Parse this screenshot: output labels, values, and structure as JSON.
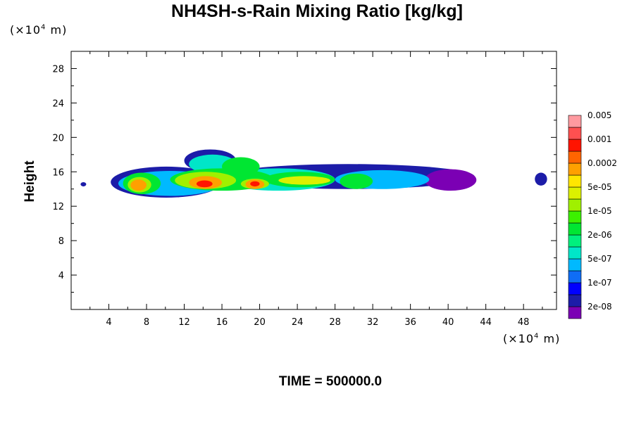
{
  "chart_data": {
    "type": "heatmap",
    "title": "NH4SH-s-Rain Mixing Ratio [kg/kg]",
    "xlabel": "",
    "ylabel": "Height",
    "footer": "TIME = 500000.0",
    "x_unit": {
      "prefix": "×10",
      "exponent": "4",
      "suffix": " m"
    },
    "y_unit": {
      "prefix": "×10",
      "exponent": "4",
      "suffix": " m"
    },
    "xlim": [
      0,
      51.5
    ],
    "ylim": [
      0,
      30
    ],
    "x_ticks": [
      4,
      8,
      12,
      16,
      20,
      24,
      28,
      32,
      36,
      40,
      44,
      48
    ],
    "y_ticks": [
      4,
      8,
      12,
      16,
      20,
      24,
      28
    ],
    "colorbar": {
      "levels": [
        {
          "color": "#7b00b4",
          "label": "2e-08"
        },
        {
          "color": "#1c1ca8",
          "label": ""
        },
        {
          "color": "#0000ff",
          "label": "1e-07"
        },
        {
          "color": "#0f6df5",
          "label": ""
        },
        {
          "color": "#00b9ff",
          "label": "5e-07"
        },
        {
          "color": "#00e6c8",
          "label": ""
        },
        {
          "color": "#00f07d",
          "label": "2e-06"
        },
        {
          "color": "#00e632",
          "label": ""
        },
        {
          "color": "#3cf000",
          "label": "1e-05"
        },
        {
          "color": "#a0f000",
          "label": ""
        },
        {
          "color": "#dcf000",
          "label": "5e-05"
        },
        {
          "color": "#ffe600",
          "label": ""
        },
        {
          "color": "#ffa000",
          "label": "0.0002"
        },
        {
          "color": "#ff6400",
          "label": ""
        },
        {
          "color": "#ff1400",
          "label": "0.001"
        },
        {
          "color": "#ff5050",
          "label": ""
        },
        {
          "color": "#ff9aa0",
          "label": "0.005"
        }
      ]
    },
    "field": {
      "description_levels": "level indices into colorbar.levels",
      "blobs": [
        {
          "x": [
            1.0,
            1.6
          ],
          "y": [
            14.3,
            14.8
          ],
          "level": 1
        },
        {
          "x": [
            4.2,
            16.0
          ],
          "y": [
            13.0,
            16.6
          ],
          "level": 1
        },
        {
          "x": [
            12.0,
            17.5
          ],
          "y": [
            16.0,
            18.6
          ],
          "level": 1
        },
        {
          "x": [
            16.0,
            42.8
          ],
          "y": [
            14.0,
            16.9
          ],
          "level": 1
        },
        {
          "x": [
            37.5,
            43.0
          ],
          "y": [
            13.8,
            16.3
          ],
          "level": 0
        },
        {
          "x": [
            49.2,
            50.5
          ],
          "y": [
            14.4,
            15.9
          ],
          "level": 1
        },
        {
          "x": [
            5.0,
            16.0
          ],
          "y": [
            13.2,
            16.1
          ],
          "level": 4
        },
        {
          "x": [
            12.5,
            17.5
          ],
          "y": [
            15.8,
            18.0
          ],
          "level": 5
        },
        {
          "x": [
            16.0,
            28.0
          ],
          "y": [
            13.8,
            16.4
          ],
          "level": 5
        },
        {
          "x": [
            28.0,
            38.0
          ],
          "y": [
            14.0,
            16.2
          ],
          "level": 4
        },
        {
          "x": [
            5.5,
            9.5
          ],
          "y": [
            13.4,
            15.9
          ],
          "level": 7
        },
        {
          "x": [
            10.5,
            21.5
          ],
          "y": [
            13.8,
            16.4
          ],
          "level": 7
        },
        {
          "x": [
            16.0,
            20.0
          ],
          "y": [
            15.5,
            17.7
          ],
          "level": 7
        },
        {
          "x": [
            20.5,
            28.0
          ],
          "y": [
            14.2,
            16.0
          ],
          "level": 7
        },
        {
          "x": [
            28.5,
            32.0
          ],
          "y": [
            14.0,
            15.8
          ],
          "level": 7
        },
        {
          "x": [
            6.0,
            8.5
          ],
          "y": [
            13.6,
            15.4
          ],
          "level": 9
        },
        {
          "x": [
            11.0,
            17.5
          ],
          "y": [
            14.0,
            16.0
          ],
          "level": 9
        },
        {
          "x": [
            18.0,
            21.0
          ],
          "y": [
            14.0,
            15.2
          ],
          "level": 9
        },
        {
          "x": [
            22.0,
            27.5
          ],
          "y": [
            14.5,
            15.5
          ],
          "level": 10
        },
        {
          "x": [
            6.3,
            8.0
          ],
          "y": [
            13.8,
            15.1
          ],
          "level": 12
        },
        {
          "x": [
            12.5,
            16.0
          ],
          "y": [
            14.0,
            15.5
          ],
          "level": 12
        },
        {
          "x": [
            18.5,
            20.5
          ],
          "y": [
            14.0,
            15.1
          ],
          "level": 12
        },
        {
          "x": [
            13.3,
            15.0
          ],
          "y": [
            14.2,
            15.0
          ],
          "level": 14
        },
        {
          "x": [
            19.0,
            20.0
          ],
          "y": [
            14.3,
            14.9
          ],
          "level": 14
        }
      ]
    }
  }
}
